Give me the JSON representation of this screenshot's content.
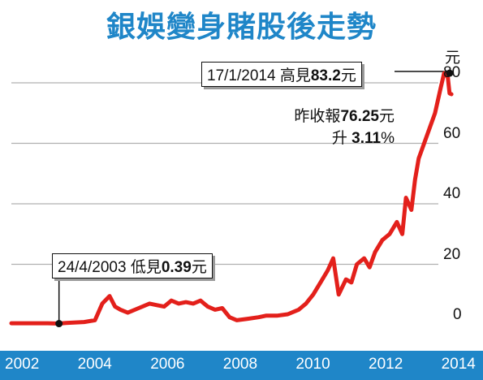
{
  "title": "銀娛變身賭股後走勢",
  "unit": "元",
  "high_box": {
    "date": "17/1/2014",
    "label": "高見",
    "value": "83.2",
    "unit": "元"
  },
  "low_box": {
    "date": "24/4/2003",
    "label": "低見",
    "value": "0.39",
    "unit": "元"
  },
  "close_note": {
    "line1_label": "昨收報",
    "line1_value": "76.25",
    "line1_unit": "元",
    "line2_label": "升",
    "line2_value": "3.11",
    "line2_unit": "%"
  },
  "colors": {
    "line": "#e3201b",
    "accent": "#1f86c8",
    "grid": "#b0b0b0"
  },
  "chart_data": {
    "type": "line",
    "title": "銀娛變身賭股後走勢",
    "xlim": [
      2002.0,
      2014.5
    ],
    "ylim": [
      0,
      85
    ],
    "x_ticks": [
      "2002",
      "2004",
      "2006",
      "2008",
      "2010",
      "2012",
      "2014"
    ],
    "y_ticks": [
      "0",
      "20",
      "40",
      "60",
      "80"
    ],
    "y_unit": "元",
    "grid": "horizontal",
    "series": [
      {
        "x": [
          2002.0,
          2002.5,
          2003.0,
          2003.31,
          2003.5,
          2004.0,
          2004.3,
          2004.5,
          2004.7,
          2004.85,
          2005.0,
          2005.2,
          2005.5,
          2005.8,
          2006.0,
          2006.2,
          2006.4,
          2006.6,
          2006.8,
          2007.0,
          2007.2,
          2007.4,
          2007.6,
          2007.8,
          2008.0,
          2008.2,
          2008.5,
          2008.8,
          2009.0,
          2009.3,
          2009.6,
          2009.9,
          2010.1,
          2010.3,
          2010.5,
          2010.7,
          2010.85,
          2011.0,
          2011.2,
          2011.35,
          2011.5,
          2011.7,
          2011.85,
          2012.0,
          2012.2,
          2012.4,
          2012.6,
          2012.75,
          2012.85,
          2013.0,
          2013.1,
          2013.2,
          2013.35,
          2013.5,
          2013.65,
          2013.8,
          2013.9,
          2014.0,
          2014.05,
          2014.1
        ],
        "y": [
          0.5,
          0.5,
          0.5,
          0.39,
          0.6,
          0.9,
          1.5,
          7,
          9.5,
          6,
          5,
          4,
          5.5,
          7,
          6.5,
          6,
          8,
          7,
          7.5,
          7,
          8,
          6,
          5,
          5.5,
          2.5,
          1.5,
          2,
          2.5,
          3,
          3,
          3.5,
          5,
          7,
          10,
          14,
          18,
          22,
          10,
          15,
          14,
          20,
          22,
          19,
          24,
          28,
          30,
          34,
          30,
          42,
          38,
          48,
          55,
          60,
          65,
          70,
          78,
          83.2,
          82,
          76.5,
          76.25
        ]
      }
    ],
    "annotations": [
      {
        "x": 2003.31,
        "y": 0.39,
        "text": "24/4/2003 低見0.39元"
      },
      {
        "x": 2014.05,
        "y": 83.2,
        "text": "17/1/2014 高見83.2元"
      },
      {
        "text": "昨收報76.25元 升3.11%"
      }
    ]
  }
}
